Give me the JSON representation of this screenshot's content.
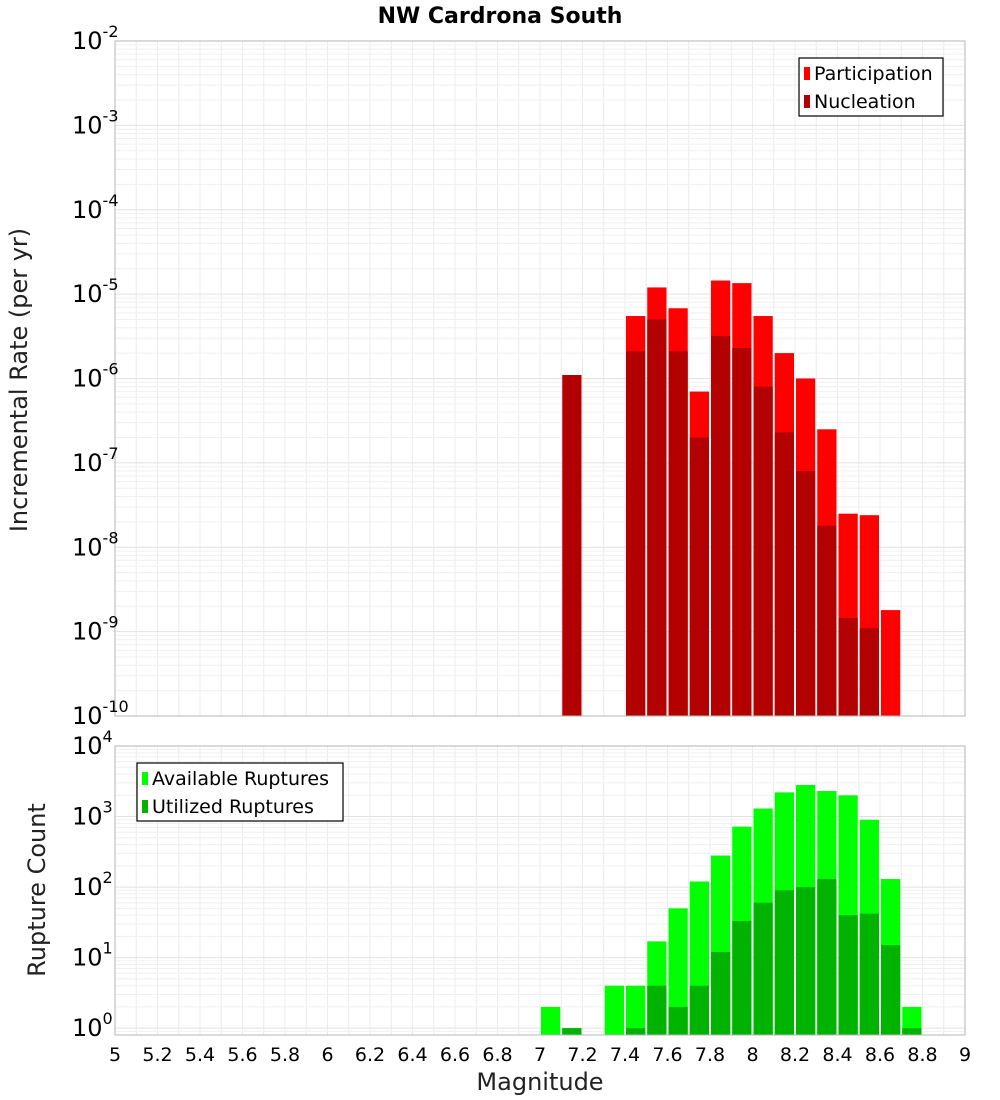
{
  "chart_data": [
    {
      "type": "bar",
      "title": "NW Cardrona South",
      "ylabel": "Incremental Rate (per yr)",
      "xlabel": "",
      "yscale": "log",
      "ylim": [
        1e-10,
        0.01
      ],
      "xlim": [
        5,
        9
      ],
      "grid": true,
      "legend_position": "top-right",
      "series": [
        {
          "name": "Participation",
          "color": "#ff0000",
          "x": [
            7.45,
            7.55,
            7.65,
            7.75,
            7.85,
            7.95,
            8.05,
            8.15,
            8.25,
            8.35,
            8.45,
            8.55,
            8.65
          ],
          "values": [
            5.5e-06,
            1.2e-05,
            6.8e-06,
            7e-07,
            1.45e-05,
            1.35e-05,
            5.5e-06,
            2e-06,
            1e-06,
            2.5e-07,
            2.5e-08,
            2.4e-08,
            1.8e-09
          ]
        },
        {
          "name": "Nucleation",
          "color": "#b30000",
          "x": [
            7.15,
            7.45,
            7.55,
            7.65,
            7.75,
            7.85,
            7.95,
            8.05,
            8.15,
            8.25,
            8.35,
            8.45,
            8.55
          ],
          "values": [
            1.1e-06,
            2.1e-06,
            5e-06,
            2.1e-06,
            2e-07,
            3.2e-06,
            2.3e-06,
            8e-07,
            2.3e-07,
            8e-08,
            1.8e-08,
            1.45e-09,
            1.1e-09
          ]
        }
      ]
    },
    {
      "type": "bar",
      "title": "",
      "ylabel": "Rupture Count",
      "xlabel": "Magnitude",
      "yscale": "log",
      "ylim": [
        0.8,
        10000.0
      ],
      "xlim": [
        5,
        9
      ],
      "xticks": [
        "5",
        "5.2",
        "5.4",
        "5.6",
        "5.8",
        "6",
        "6.2",
        "6.4",
        "6.6",
        "6.8",
        "7",
        "7.2",
        "7.4",
        "7.6",
        "7.8",
        "8",
        "8.2",
        "8.4",
        "8.6",
        "8.8",
        "9"
      ],
      "grid": true,
      "legend_position": "top-left",
      "series": [
        {
          "name": "Available Ruptures",
          "color": "#00ff00",
          "x": [
            7.05,
            7.15,
            7.35,
            7.45,
            7.55,
            7.65,
            7.75,
            7.85,
            7.95,
            8.05,
            8.15,
            8.25,
            8.35,
            8.45,
            8.55,
            8.65,
            8.75
          ],
          "values": [
            2,
            1,
            4,
            4,
            17,
            50,
            120,
            280,
            720,
            1300,
            2200,
            2800,
            2300,
            2000,
            900,
            130,
            2
          ]
        },
        {
          "name": "Utilized Ruptures",
          "color": "#00b300",
          "x": [
            7.15,
            7.45,
            7.55,
            7.65,
            7.75,
            7.85,
            7.95,
            8.05,
            8.15,
            8.25,
            8.35,
            8.45,
            8.55,
            8.65,
            8.75
          ],
          "values": [
            1,
            1,
            4,
            2,
            4,
            12,
            33,
            60,
            90,
            100,
            130,
            40,
            42,
            15,
            1
          ]
        }
      ]
    }
  ]
}
